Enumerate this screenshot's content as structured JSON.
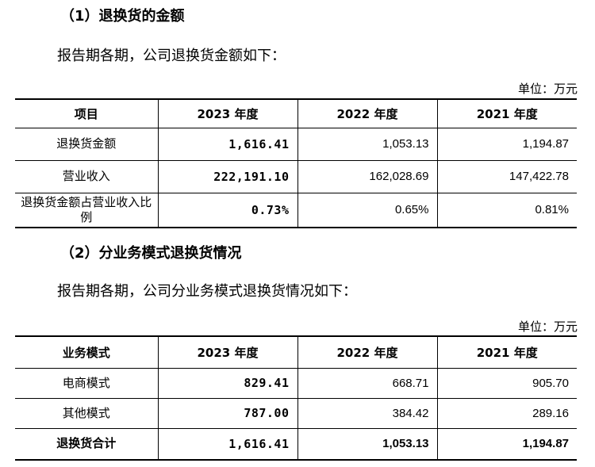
{
  "section1": {
    "heading": "（1）退换货的金额",
    "intro": "报告期各期，公司退换货金额如下：",
    "unit": "单位：万元",
    "headers": [
      "项目",
      "2023 年度",
      "2022 年度",
      "2021 年度"
    ],
    "rows": [
      {
        "label": "退换货金额",
        "v2023": "1,616.41",
        "v2022": "1,053.13",
        "v2021": "1,194.87"
      },
      {
        "label": "营业收入",
        "v2023": "222,191.10",
        "v2022": "162,028.69",
        "v2021": "147,422.78"
      },
      {
        "label": "退换货金额占营业收入比例",
        "v2023": "0.73%",
        "v2022": "0.65%",
        "v2021": "0.81%"
      }
    ]
  },
  "section2": {
    "heading": "（2）分业务模式退换货情况",
    "intro": "报告期各期，公司分业务模式退换货情况如下：",
    "unit": "单位：万元",
    "headers": [
      "业务模式",
      "2023 年度",
      "2022 年度",
      "2021 年度"
    ],
    "rows": [
      {
        "label": "电商模式",
        "v2023": "829.41",
        "v2022": "668.71",
        "v2021": "905.70"
      },
      {
        "label": "其他模式",
        "v2023": "787.00",
        "v2022": "384.42",
        "v2021": "289.16"
      },
      {
        "label": "退换货合计",
        "v2023": "1,616.41",
        "v2022": "1,053.13",
        "v2021": "1,194.87"
      }
    ]
  }
}
